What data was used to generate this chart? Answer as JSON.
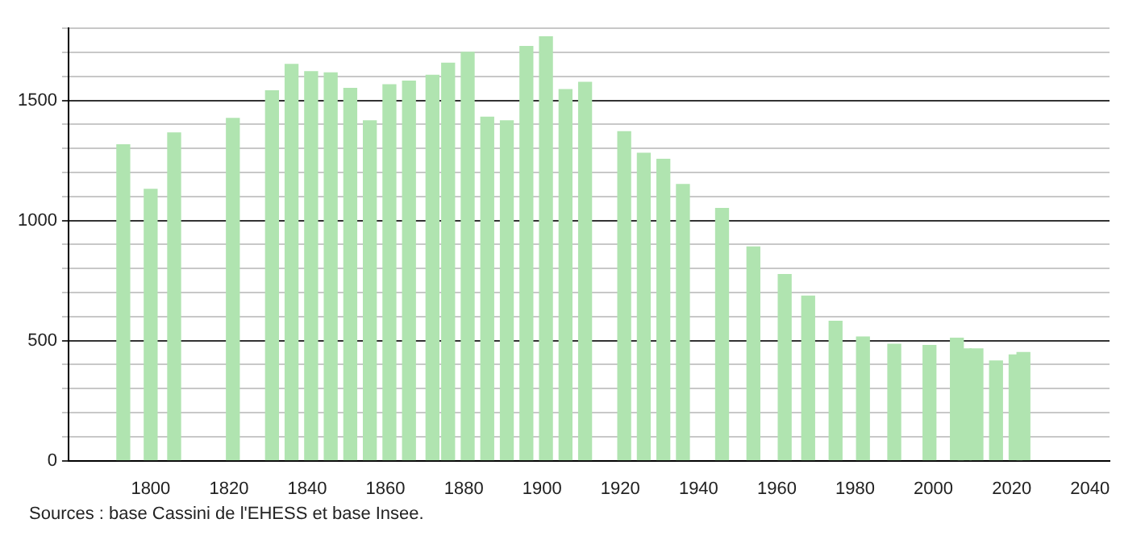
{
  "chart_data": {
    "type": "bar",
    "x": [
      1793,
      1800,
      1806,
      1821,
      1831,
      1836,
      1841,
      1846,
      1851,
      1856,
      1861,
      1866,
      1872,
      1876,
      1881,
      1886,
      1891,
      1896,
      1901,
      1906,
      1911,
      1921,
      1926,
      1931,
      1936,
      1946,
      1954,
      1962,
      1968,
      1975,
      1982,
      1990,
      1999,
      2006,
      2008,
      2011,
      2016,
      2021,
      2023
    ],
    "values": [
      1315,
      1130,
      1365,
      1425,
      1540,
      1650,
      1620,
      1615,
      1550,
      1415,
      1565,
      1580,
      1605,
      1655,
      1700,
      1430,
      1415,
      1725,
      1765,
      1545,
      1575,
      1370,
      1280,
      1255,
      1150,
      1050,
      890,
      775,
      685,
      580,
      515,
      485,
      480,
      510,
      465,
      465,
      415,
      440,
      450
    ],
    "color": "#b0e4b0",
    "xlim": [
      1779,
      2045
    ],
    "xticks": [
      1800,
      1820,
      1840,
      1860,
      1880,
      1900,
      1920,
      1940,
      1960,
      1980,
      2000,
      2020,
      2040
    ],
    "ylim": [
      0,
      1800
    ],
    "yticks": [
      0,
      {
        "value": 100,
        "label": null
      },
      {
        "value": 200,
        "label": null
      },
      {
        "value": 300,
        "label": null
      },
      {
        "value": 400,
        "label": null
      },
      500,
      {
        "value": 600,
        "label": null
      },
      {
        "value": 700,
        "label": null
      },
      {
        "value": 800,
        "label": null
      },
      {
        "value": 900,
        "label": null
      },
      1000,
      {
        "value": 1100,
        "label": null
      },
      {
        "value": 1200,
        "label": null
      },
      {
        "value": 1300,
        "label": null
      },
      {
        "value": 1400,
        "label": null
      },
      1500,
      {
        "value": 1600,
        "label": null
      },
      {
        "value": 1700,
        "label": null
      },
      {
        "value": 1800,
        "label": null
      }
    ],
    "grid": "y",
    "legend": false,
    "annotations": [
      "Sources : base Cassini de l'EHESS et base Insee."
    ]
  }
}
